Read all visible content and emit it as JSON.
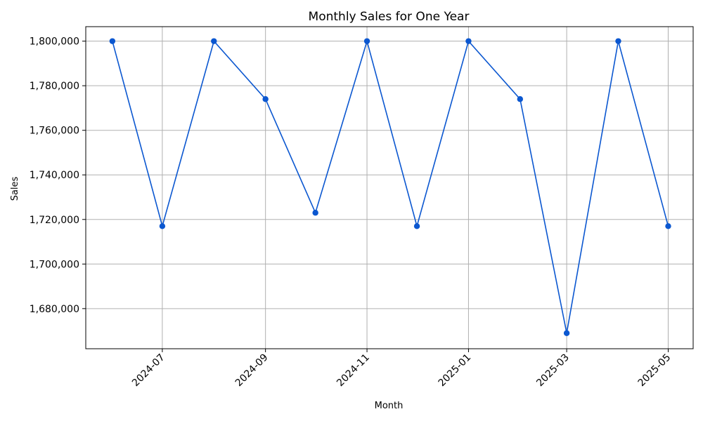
{
  "chart_data": {
    "type": "line",
    "title": "Monthly Sales for One Year",
    "xlabel": "Month",
    "ylabel": "Sales",
    "x": [
      "2024-06-01",
      "2024-07-01",
      "2024-08-01",
      "2024-09-01",
      "2024-10-01",
      "2024-11-01",
      "2024-12-01",
      "2025-01-01",
      "2025-02-01",
      "2025-03-01",
      "2025-04-01",
      "2025-05-01"
    ],
    "series": [
      {
        "values": [
          1800000,
          1717000,
          1800000,
          1774000,
          1723000,
          1800000,
          1717000,
          1800000,
          1774000,
          1669000,
          1800000,
          1717000
        ],
        "color": "#0b57d0",
        "marker": "circle"
      }
    ],
    "xticks": [
      "2024-07",
      "2024-09",
      "2024-11",
      "2025-01",
      "2025-03",
      "2025-05"
    ],
    "yticks": [
      1680000,
      1700000,
      1720000,
      1740000,
      1760000,
      1780000,
      1800000
    ],
    "ytick_labels": [
      "1,680,000",
      "1,700,000",
      "1,720,000",
      "1,740,000",
      "1,760,000",
      "1,780,000",
      "1,800,000"
    ],
    "xlim": [
      "2024-05-16",
      "2025-05-16"
    ],
    "ylim": [
      1662000,
      1806500
    ],
    "grid": true,
    "tick_rotation_deg": 45
  }
}
